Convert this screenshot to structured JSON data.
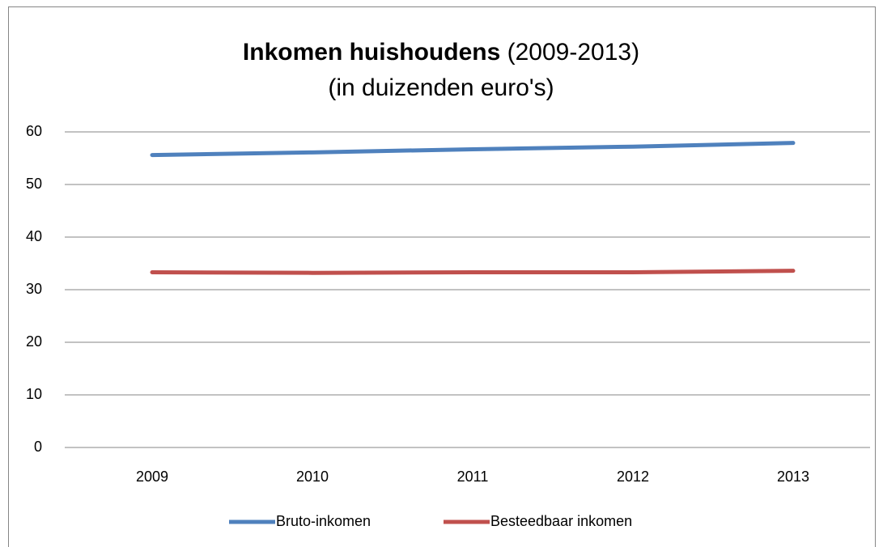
{
  "chart_data": {
    "type": "line",
    "title": [
      "Inkomen huishoudens",
      "(2009-2013)"
    ],
    "subtitle": "(in duizenden euro's)",
    "categories": [
      "2009",
      "2010",
      "2011",
      "2012",
      "2013"
    ],
    "series": [
      {
        "name": "Bruto-inkomen",
        "color": "#4f81bd",
        "values": [
          55.6,
          56.1,
          56.7,
          57.2,
          57.9
        ]
      },
      {
        "name": "Besteedbaar inkomen",
        "color": "#c0504d",
        "values": [
          33.3,
          33.2,
          33.3,
          33.3,
          33.6
        ]
      }
    ],
    "ylim": [
      0,
      60
    ],
    "yticks": [
      0,
      10,
      20,
      30,
      40,
      50,
      60
    ],
    "grid": true,
    "legend": "bottom"
  }
}
